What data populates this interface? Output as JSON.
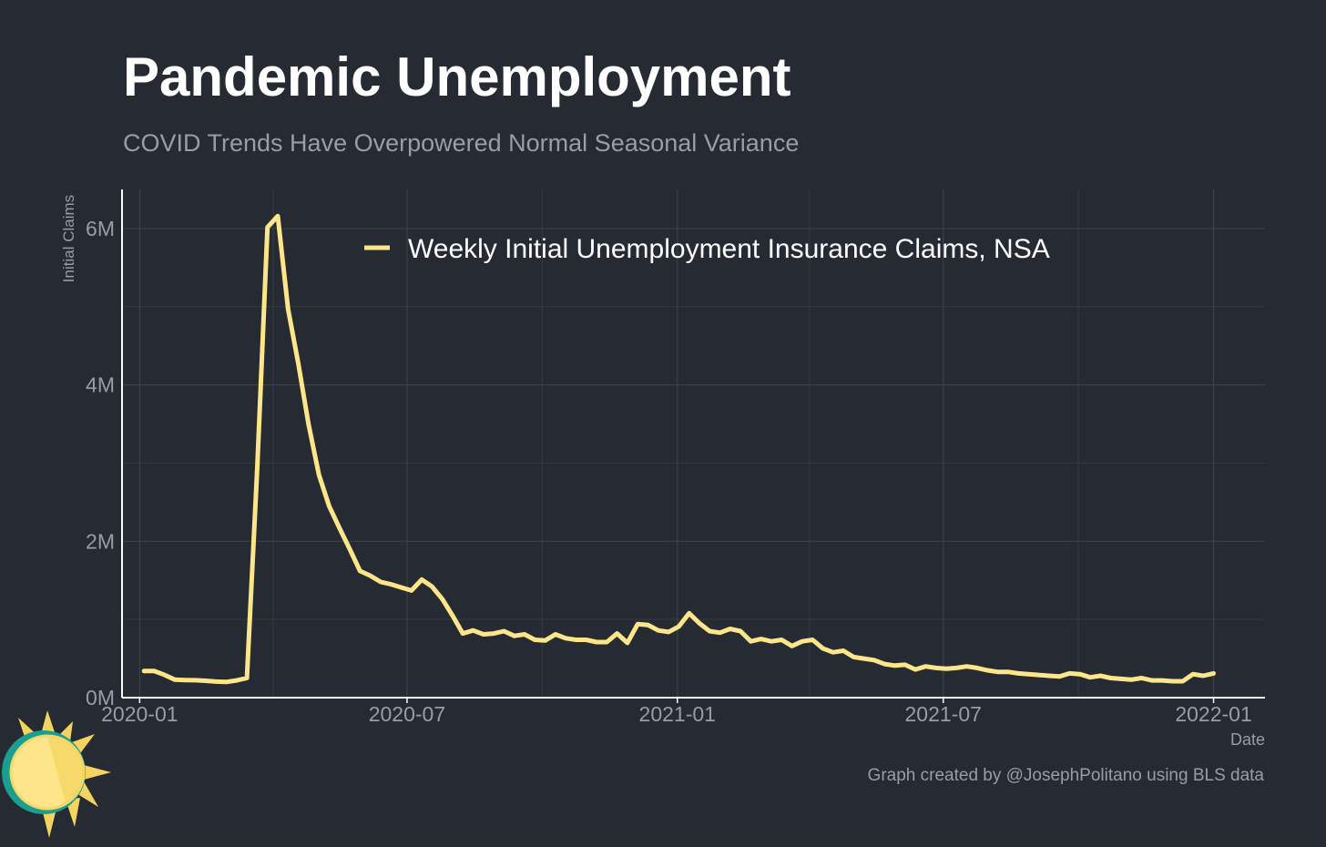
{
  "header": {
    "title": "Pandemic Unemployment",
    "subtitle": "COVID Trends Have Overpowered Normal Seasonal Variance"
  },
  "caption": "Graph created by @JosephPolitano using BLS data",
  "colors": {
    "background": "#252a33",
    "line": "#fde68a",
    "grid": "#3b4049",
    "axis": "#ffffff",
    "muted_text": "#9a9da3"
  },
  "logo": {
    "icon": "sun-icon"
  },
  "chart_data": {
    "type": "line",
    "xlabel": "Date",
    "ylabel": "Initial Claims",
    "x_ticks": [
      "2020-01",
      "2020-07",
      "2021-01",
      "2021-07",
      "2022-01"
    ],
    "y_ticks": [
      {
        "value": 0,
        "label": "0M"
      },
      {
        "value": 2000000,
        "label": "2M"
      },
      {
        "value": 4000000,
        "label": "4M"
      },
      {
        "value": 6000000,
        "label": "6M"
      }
    ],
    "xlim": [
      "2019-12-20",
      "2022-02-05"
    ],
    "ylim": [
      0,
      6500000
    ],
    "grid": true,
    "legend_position": "top-center",
    "series": [
      {
        "name": "Weekly Initial Unemployment Insurance Claims, NSA",
        "color": "#fde68a",
        "x": [
          "2020-01-04",
          "2020-01-11",
          "2020-01-18",
          "2020-01-25",
          "2020-02-01",
          "2020-02-08",
          "2020-02-15",
          "2020-02-22",
          "2020-02-29",
          "2020-03-07",
          "2020-03-14",
          "2020-03-21",
          "2020-03-28",
          "2020-04-04",
          "2020-04-11",
          "2020-04-18",
          "2020-04-25",
          "2020-05-02",
          "2020-05-09",
          "2020-05-16",
          "2020-05-23",
          "2020-05-30",
          "2020-06-06",
          "2020-06-13",
          "2020-06-20",
          "2020-06-27",
          "2020-07-04",
          "2020-07-11",
          "2020-07-18",
          "2020-07-25",
          "2020-08-01",
          "2020-08-08",
          "2020-08-15",
          "2020-08-22",
          "2020-08-29",
          "2020-09-05",
          "2020-09-12",
          "2020-09-19",
          "2020-09-26",
          "2020-10-03",
          "2020-10-10",
          "2020-10-17",
          "2020-10-24",
          "2020-10-31",
          "2020-11-07",
          "2020-11-14",
          "2020-11-21",
          "2020-11-28",
          "2020-12-05",
          "2020-12-12",
          "2020-12-19",
          "2020-12-26",
          "2021-01-02",
          "2021-01-09",
          "2021-01-16",
          "2021-01-23",
          "2021-01-30",
          "2021-02-06",
          "2021-02-13",
          "2021-02-20",
          "2021-02-27",
          "2021-03-06",
          "2021-03-13",
          "2021-03-20",
          "2021-03-27",
          "2021-04-03",
          "2021-04-10",
          "2021-04-17",
          "2021-04-24",
          "2021-05-01",
          "2021-05-08",
          "2021-05-15",
          "2021-05-22",
          "2021-05-29",
          "2021-06-05",
          "2021-06-12",
          "2021-06-19",
          "2021-06-26",
          "2021-07-03",
          "2021-07-10",
          "2021-07-17",
          "2021-07-24",
          "2021-07-31",
          "2021-08-07",
          "2021-08-14",
          "2021-08-21",
          "2021-08-28",
          "2021-09-04",
          "2021-09-11",
          "2021-09-18",
          "2021-09-25",
          "2021-10-02",
          "2021-10-09",
          "2021-10-16",
          "2021-10-23",
          "2021-10-30",
          "2021-11-06",
          "2021-11-13",
          "2021-11-20",
          "2021-11-27",
          "2021-12-04",
          "2021-12-11",
          "2021-12-18",
          "2021-12-25",
          "2022-01-01"
        ],
        "values": [
          340000,
          340000,
          290000,
          230000,
          225000,
          222000,
          215000,
          205000,
          200000,
          220000,
          251000,
          2920000,
          6015000,
          6160000,
          4970000,
          4270000,
          3490000,
          2850000,
          2450000,
          2170000,
          1900000,
          1620000,
          1560000,
          1480000,
          1450000,
          1410000,
          1370000,
          1510000,
          1420000,
          1260000,
          1050000,
          820000,
          860000,
          810000,
          820000,
          850000,
          790000,
          810000,
          740000,
          730000,
          810000,
          760000,
          740000,
          740000,
          710000,
          710000,
          820000,
          700000,
          940000,
          930000,
          860000,
          840000,
          910000,
          1080000,
          950000,
          850000,
          830000,
          880000,
          850000,
          720000,
          750000,
          720000,
          740000,
          660000,
          720000,
          740000,
          630000,
          580000,
          600000,
          520000,
          500000,
          480000,
          430000,
          410000,
          420000,
          360000,
          400000,
          380000,
          370000,
          380000,
          400000,
          380000,
          350000,
          330000,
          330000,
          310000,
          300000,
          290000,
          280000,
          270000,
          310000,
          300000,
          260000,
          280000,
          250000,
          240000,
          230000,
          250000,
          220000,
          220000,
          210000,
          210000,
          300000,
          280000,
          310000
        ]
      }
    ]
  }
}
